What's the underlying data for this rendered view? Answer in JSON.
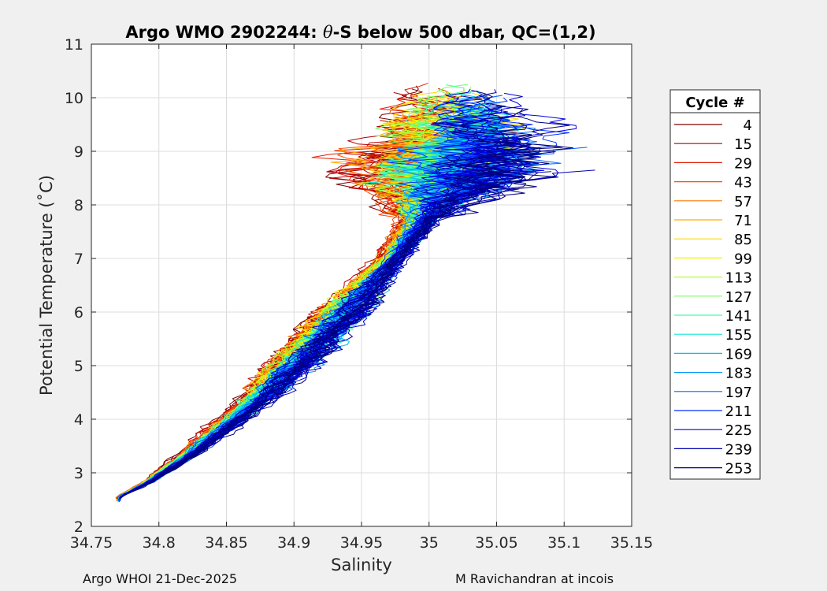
{
  "chart_data": {
    "type": "line",
    "title_prefix": "Argo WMO 2902244: ",
    "title_symbol": "θ",
    "title_suffix": "-S below 500 dbar,  QC=(1,2)",
    "xlabel": "Salinity",
    "ylabel": "Potential Temperature (˚C)",
    "xlim": [
      34.75,
      35.15
    ],
    "ylim": [
      2,
      11
    ],
    "x_ticks": [
      34.75,
      34.8,
      34.85,
      34.9,
      34.95,
      35,
      35.05,
      35.1,
      35.15
    ],
    "x_tick_labels": [
      "34.75",
      "34.8",
      "34.85",
      "34.9",
      "34.95",
      "35",
      "35.05",
      "35.1",
      "35.15"
    ],
    "y_ticks": [
      2,
      3,
      4,
      5,
      6,
      7,
      8,
      9,
      10,
      11
    ],
    "y_tick_labels": [
      "2",
      "3",
      "4",
      "5",
      "6",
      "7",
      "8",
      "9",
      "10",
      "11"
    ],
    "grid": true,
    "legend_title": "Cycle #",
    "legend_position": "right-outside",
    "cycles": [
      4,
      15,
      29,
      43,
      57,
      71,
      85,
      99,
      113,
      127,
      141,
      155,
      169,
      183,
      197,
      211,
      225,
      239,
      253
    ],
    "cycle_colors": [
      "#800000",
      "#b50000",
      "#e31a00",
      "#ff4a00",
      "#ff7a00",
      "#ffad00",
      "#ffd900",
      "#f3f300",
      "#b3ff2b",
      "#7bff64",
      "#3dffa3",
      "#10e6d6",
      "#00bff7",
      "#0096ff",
      "#0063ff",
      "#0030ff",
      "#0000e6",
      "#0000b3",
      "#000080"
    ],
    "mean_profile": {
      "salinity": [
        34.77,
        34.79,
        34.82,
        34.85,
        34.88,
        34.91,
        34.94,
        34.97,
        34.99,
        35.005,
        35.015,
        35.02,
        35.02,
        35.025,
        35.03
      ],
      "theta": [
        2.55,
        2.8,
        3.3,
        3.9,
        4.55,
        5.3,
        6.1,
        6.9,
        7.6,
        8.2,
        8.8,
        9.2,
        9.6,
        9.9,
        10.1
      ]
    },
    "spread_profile": {
      "theta": [
        2.5,
        3.0,
        4.0,
        5.0,
        6.0,
        7.0,
        8.0,
        8.5,
        9.0,
        9.5,
        10.0,
        10.3
      ],
      "s_min": [
        34.765,
        34.775,
        34.8,
        34.805,
        34.86,
        34.94,
        34.975,
        34.88,
        34.87,
        34.9,
        34.93,
        34.96
      ],
      "s_max": [
        34.775,
        34.805,
        34.86,
        34.91,
        34.975,
        35.0,
        35.07,
        35.1,
        35.12,
        35.11,
        35.08,
        35.06
      ]
    },
    "footer_left": "Argo WHOI 21-Dec-2025",
    "footer_right": "M Ravichandran at incois"
  }
}
